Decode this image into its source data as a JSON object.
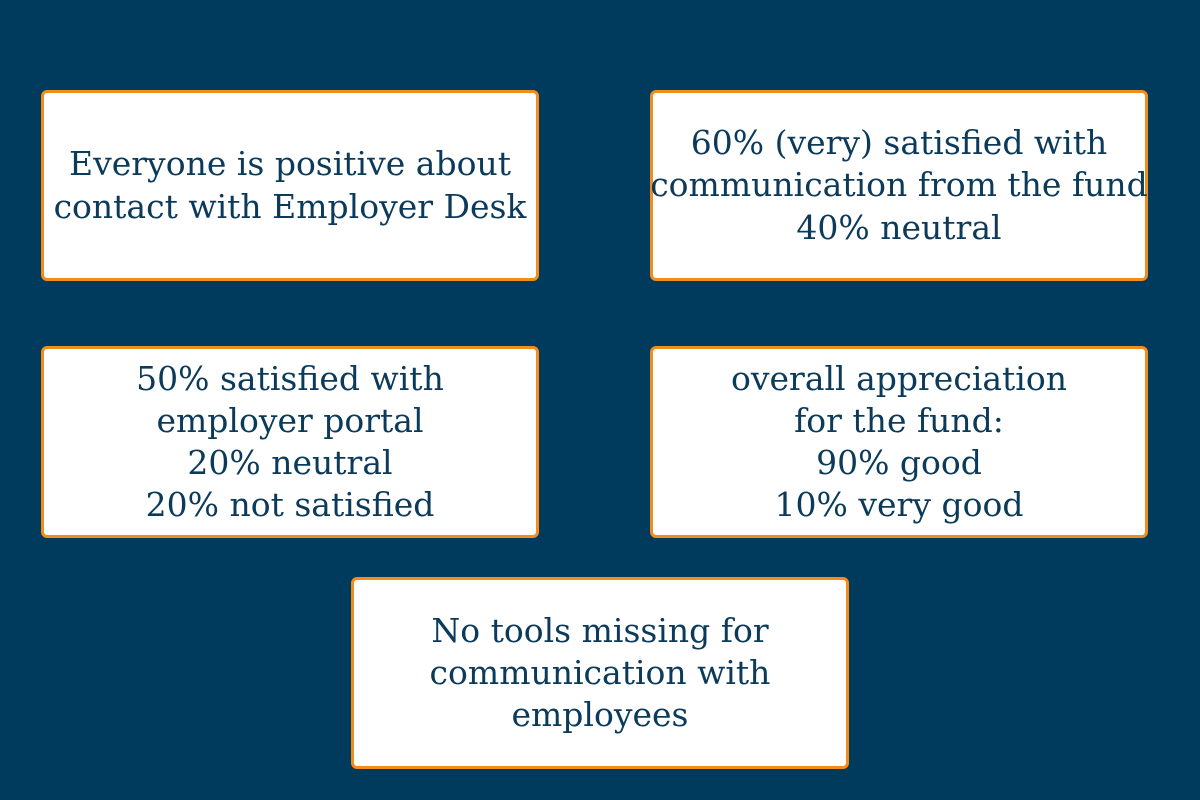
{
  "colors": {
    "background": "#003a5c",
    "card_border": "#f28c1b",
    "card_background": "#ffffff",
    "text": "#0b3a5a"
  },
  "cards": [
    {
      "lines": [
        "Everyone is positive about",
        "contact with Employer Desk"
      ]
    },
    {
      "lines": [
        "60% (very) satisfied with",
        "communication from the fund",
        "40% neutral"
      ]
    },
    {
      "lines": [
        "50% satisfied with",
        "employer portal",
        "20% neutral",
        "20% not satisfied"
      ]
    },
    {
      "lines": [
        "overall appreciation",
        "for the fund:",
        "90% good",
        "10% very good"
      ]
    },
    {
      "lines": [
        "No tools missing for",
        "communication with",
        "employees"
      ]
    }
  ]
}
